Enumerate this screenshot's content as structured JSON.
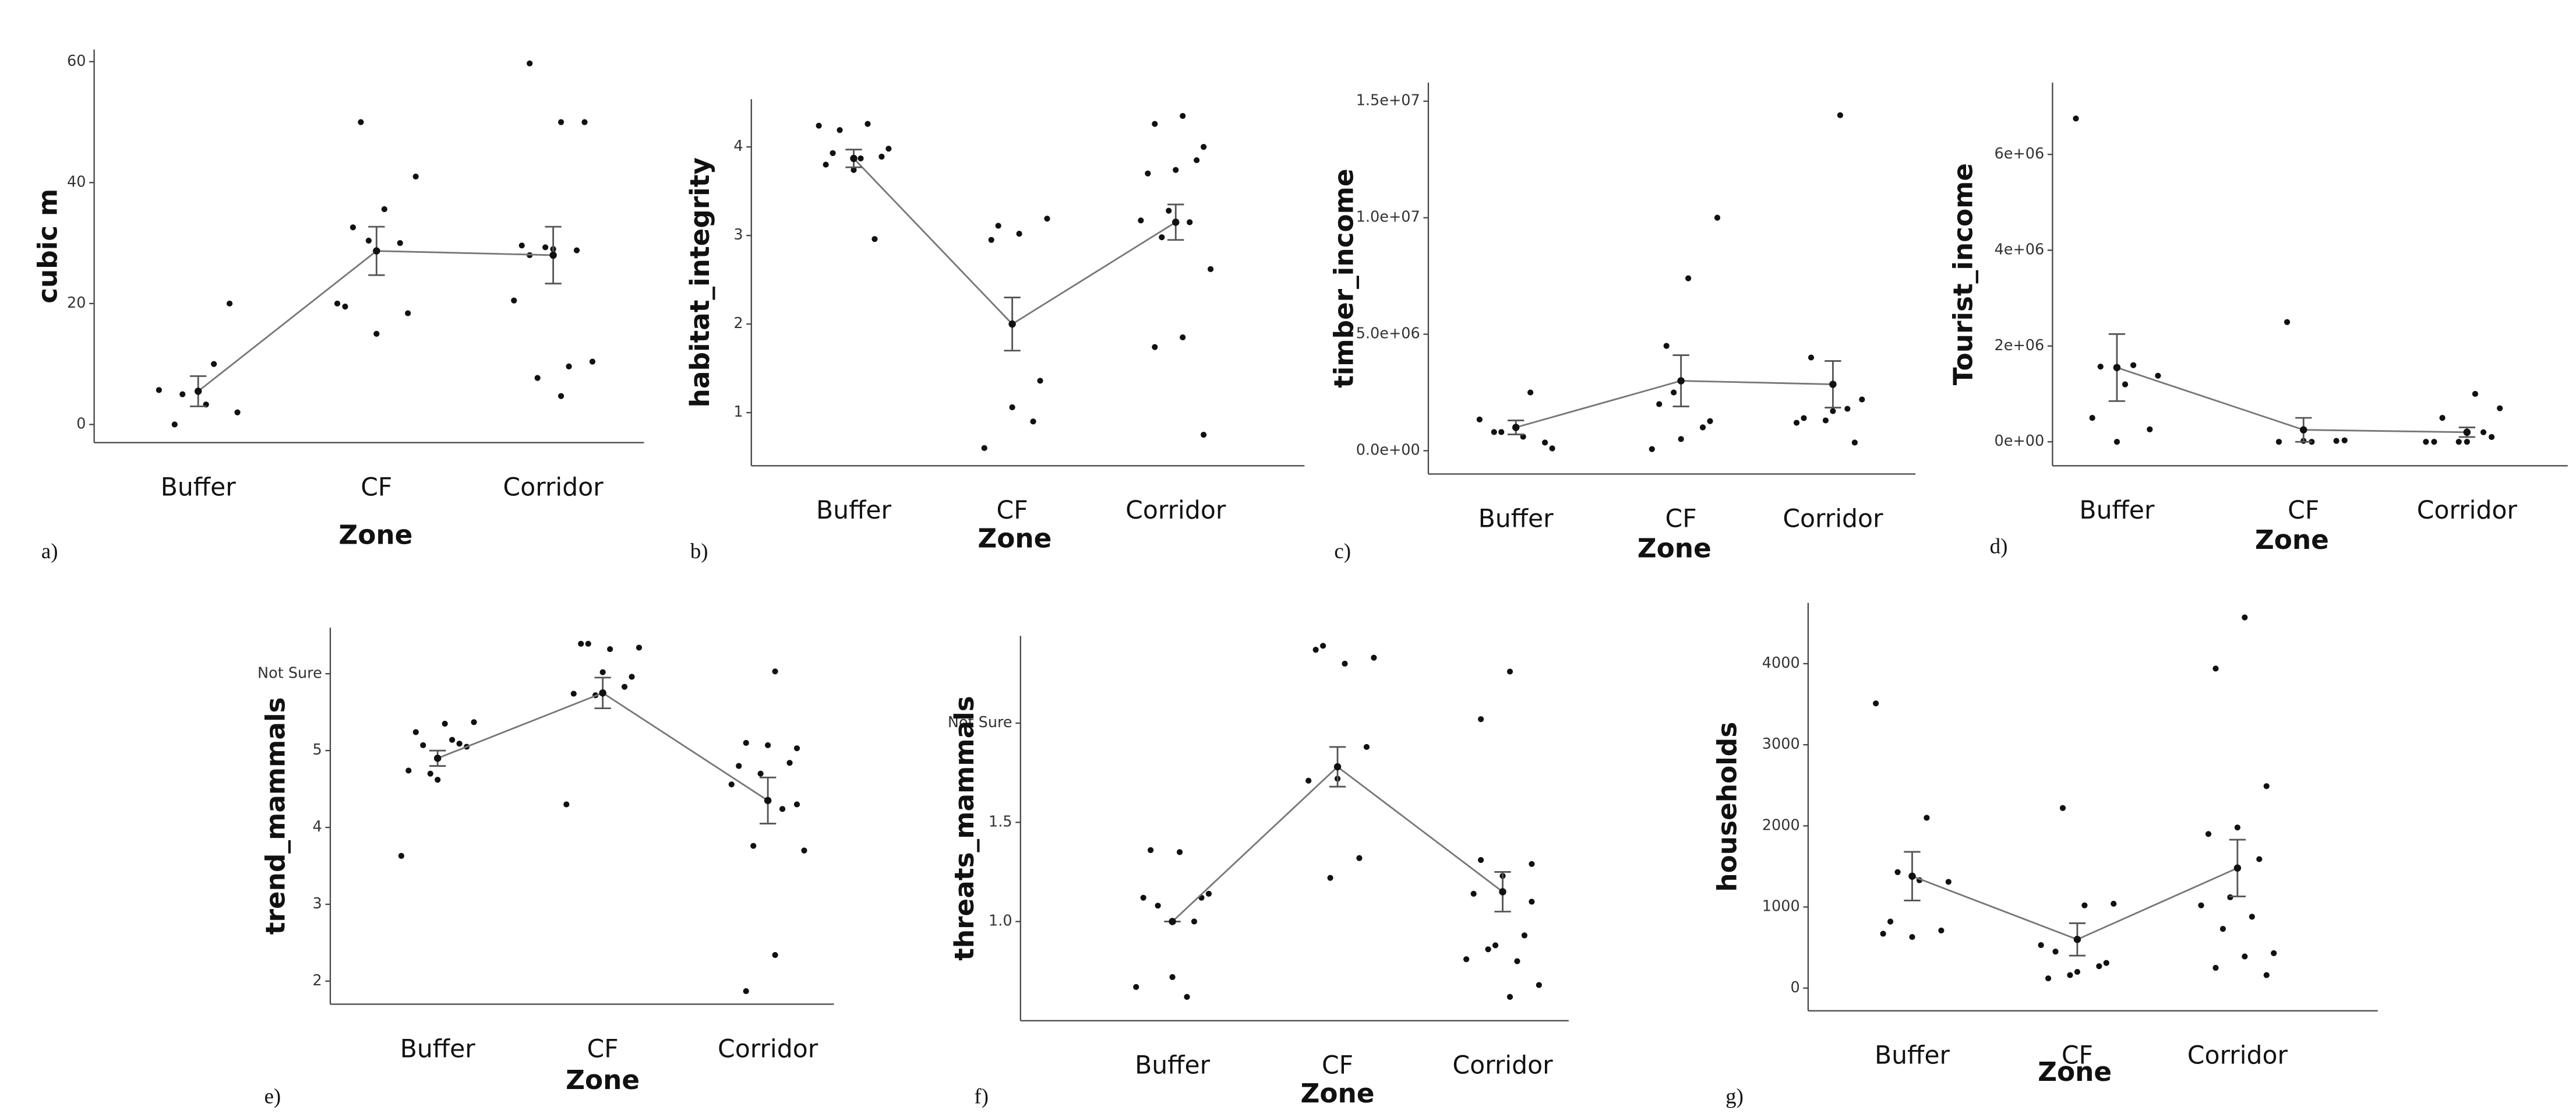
{
  "chart_data": [
    {
      "type": "strip",
      "panel_label": "a)",
      "y_label": "cubic m",
      "x_label": "Zone",
      "categories": [
        "Buffer",
        "CF",
        "Corridor"
      ],
      "points": [
        [
          5.7,
          10,
          5,
          2,
          3.3,
          0,
          20
        ],
        [
          50,
          41,
          35.6,
          32.6,
          18.4,
          15,
          19.5,
          30,
          30.4,
          20
        ],
        [
          50,
          59.7,
          50,
          29,
          29.6,
          28.8,
          29.3,
          20.5,
          9.6,
          7.7,
          10.4,
          4.7,
          28
        ]
      ],
      "means": [
        5.5,
        28.7,
        28
      ],
      "errors": [
        2.5,
        4,
        4.7
      ],
      "ylim": [
        -3,
        62
      ],
      "yticks": [
        0,
        20,
        40,
        60
      ]
    },
    {
      "type": "strip",
      "panel_label": "b)",
      "y_label": "habitat_integrity",
      "x_label": "Zone",
      "categories": [
        "Buffer",
        "CF",
        "Corridor"
      ],
      "points": [
        [
          4.24,
          4.26,
          4.19,
          3.98,
          3.87,
          3.93,
          3.89,
          3.74,
          3.8,
          2.96
        ],
        [
          3.11,
          3.19,
          3.02,
          2.95,
          1.36,
          1.06,
          0.6,
          0.9
        ],
        [
          4.35,
          4.26,
          4,
          3.74,
          3.7,
          3.85,
          3.28,
          3.17,
          3.15,
          2.98,
          2.62,
          1.85,
          1.74,
          0.75
        ]
      ],
      "means": [
        3.87,
        2,
        3.15
      ],
      "errors": [
        0.1,
        0.3,
        0.2
      ],
      "ylim": [
        0.4,
        4.54
      ],
      "yticks": [
        1,
        2,
        3,
        4
      ]
    },
    {
      "type": "strip",
      "panel_label": "c)",
      "y_label": "timber_income",
      "x_label": "Zone",
      "categories": [
        "Buffer",
        "CF",
        "Corridor"
      ],
      "points": [
        [
          1340000,
          2500000,
          800000,
          100000,
          600000,
          800000,
          350000
        ],
        [
          4500000,
          10000000,
          7400000,
          2000000,
          1270000,
          500000,
          70000,
          1000000,
          2500000
        ],
        [
          14400000,
          4000000,
          2200000,
          1700000,
          1400000,
          350000,
          1300000,
          1200000,
          1800000
        ]
      ],
      "means": [
        1000000,
        3000000,
        2850000
      ],
      "errors": [
        300000,
        1100000,
        1000000
      ],
      "ylim": [
        -1000000,
        15800000
      ],
      "yticks": [
        {
          "value": 0,
          "label": "0.0e+00"
        },
        {
          "value": 5000000,
          "label": "5.0e+06"
        },
        {
          "value": 10000000,
          "label": "1.0e+07"
        },
        {
          "value": 15000000,
          "label": "1.5e+07"
        }
      ]
    },
    {
      "type": "strip",
      "panel_label": "d)",
      "y_label": "Tourist_income",
      "x_label": "Zone",
      "categories": [
        "Buffer",
        "CF",
        "Corridor"
      ],
      "points": [
        [
          6750000,
          1600000,
          1570000,
          1380000,
          1200000,
          500000,
          260000,
          0
        ],
        [
          2500000,
          30000,
          0,
          0,
          20000,
          20000
        ],
        [
          1000000,
          500000,
          700000,
          0,
          0,
          100000,
          0,
          0,
          200000
        ]
      ],
      "means": [
        1550000,
        250000,
        200000
      ],
      "errors": [
        700000,
        250000,
        100000
      ],
      "ylim": [
        -500000,
        7500000
      ],
      "yticks": [
        {
          "value": 0,
          "label": "0e+00"
        },
        {
          "value": 2000000,
          "label": "2e+06"
        },
        {
          "value": 4000000,
          "label": "4e+06"
        },
        {
          "value": 6000000,
          "label": "6e+06"
        }
      ]
    },
    {
      "type": "strip",
      "panel_label": "e)",
      "y_label": "trend_mammals",
      "x_label": "Zone",
      "categories": [
        "Buffer",
        "CF",
        "Corridor"
      ],
      "points": [
        [
          3.63,
          5.14,
          5.07,
          5.37,
          5.35,
          5.24,
          5.05,
          4.62,
          4.74,
          5.09,
          4.7
        ],
        [
          6.39,
          6.34,
          6.32,
          6.39,
          5.96,
          6.02,
          5.74,
          5.83,
          5.72,
          4.3
        ],
        [
          6.03,
          5.1,
          5.03,
          5.07,
          4.8,
          4.84,
          4.7,
          4.56,
          4.24,
          3.76,
          3.7,
          2.34,
          1.87,
          4.3
        ]
      ],
      "means": [
        4.9,
        5.75,
        4.35
      ],
      "errors": [
        0.1,
        0.2,
        0.3
      ],
      "ylim": [
        1.7,
        6.6
      ],
      "yticks": [
        2,
        3,
        4,
        5,
        {
          "value": 6,
          "label": "Not Sure"
        }
      ]
    },
    {
      "type": "strip",
      "panel_label": "f)",
      "y_label": "threats_mammals",
      "x_label": "Zone",
      "categories": [
        "Buffer",
        "CF",
        "Corridor"
      ],
      "points": [
        [
          0.67,
          0.62,
          1.08,
          1.14,
          1.35,
          1.36,
          1.12,
          0.72,
          1.12,
          1
        ],
        [
          2.39,
          2.33,
          2.3,
          2.37,
          1.88,
          1.72,
          1.71,
          1.32,
          1.22
        ],
        [
          2.26,
          2.02,
          1.29,
          1.23,
          1.14,
          0.93,
          0.88,
          0.81,
          0.8,
          0.86,
          0.68,
          0.62,
          1.31,
          1.1
        ]
      ],
      "means": [
        1,
        1.78,
        1.15
      ],
      "errors": [
        0,
        0.1,
        0.1
      ],
      "ylim": [
        0.5,
        2.44
      ],
      "yticks": [
        {
          "value": 1,
          "label": "1.0"
        },
        1.5,
        {
          "value": 2,
          "label": "Not Sure"
        }
      ]
    },
    {
      "type": "strip",
      "panel_label": "g)",
      "y_label": "households",
      "x_label": "Zone",
      "categories": [
        "Buffer",
        "CF",
        "Corridor"
      ],
      "points": [
        [
          3510,
          2100,
          1430,
          1310,
          1330,
          820,
          710,
          630,
          670
        ],
        [
          2220,
          1040,
          1020,
          450,
          310,
          200,
          120,
          270,
          160,
          530
        ],
        [
          4570,
          3940,
          2490,
          1980,
          1900,
          1590,
          1120,
          1020,
          880,
          730,
          430,
          390,
          250,
          160
        ]
      ],
      "means": [
        1380,
        600,
        1480
      ],
      "errors": [
        300,
        200,
        350
      ],
      "ylim": [
        -280,
        4750
      ],
      "yticks": [
        0,
        1000,
        2000,
        3000,
        4000
      ]
    }
  ]
}
